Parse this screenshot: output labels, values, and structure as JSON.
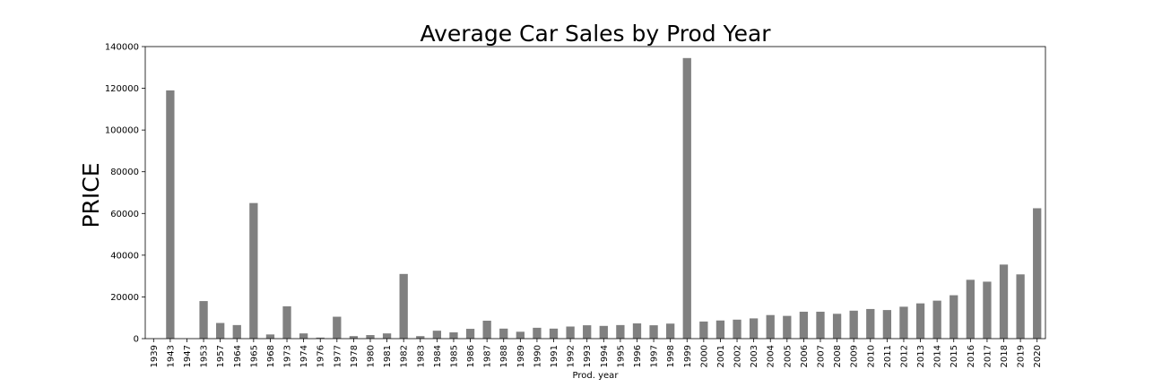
{
  "chart_data": {
    "type": "bar",
    "title": "Average Car Sales by Prod Year",
    "xlabel": "Prod. year",
    "ylabel": "PRICE",
    "ylim": [
      0,
      140000
    ],
    "yticks": [
      0,
      20000,
      40000,
      60000,
      80000,
      100000,
      120000,
      140000
    ],
    "bar_color": "#808080",
    "grid": false,
    "categories": [
      "1939",
      "1943",
      "1947",
      "1953",
      "1957",
      "1964",
      "1965",
      "1968",
      "1973",
      "1974",
      "1976",
      "1977",
      "1978",
      "1980",
      "1981",
      "1982",
      "1983",
      "1984",
      "1985",
      "1986",
      "1987",
      "1988",
      "1989",
      "1990",
      "1991",
      "1992",
      "1993",
      "1994",
      "1995",
      "1996",
      "1997",
      "1998",
      "1999",
      "2000",
      "2001",
      "2002",
      "2003",
      "2004",
      "2005",
      "2006",
      "2007",
      "2008",
      "2009",
      "2010",
      "2011",
      "2012",
      "2013",
      "2014",
      "2015",
      "2016",
      "2017",
      "2018",
      "2019",
      "2020"
    ],
    "values": [
      0,
      119000,
      0,
      18000,
      7500,
      6500,
      65000,
      2000,
      15500,
      2500,
      500,
      10500,
      1200,
      1700,
      2500,
      31000,
      1200,
      3800,
      3000,
      4700,
      8600,
      4800,
      3300,
      5200,
      4800,
      5800,
      6400,
      6100,
      6500,
      7300,
      6400,
      7200,
      134500,
      8200,
      8700,
      9100,
      9700,
      11300,
      10900,
      12900,
      12900,
      11900,
      13400,
      14200,
      13700,
      15300,
      16900,
      18200,
      20800,
      28200,
      27300,
      35500,
      30800,
      62500
    ]
  }
}
